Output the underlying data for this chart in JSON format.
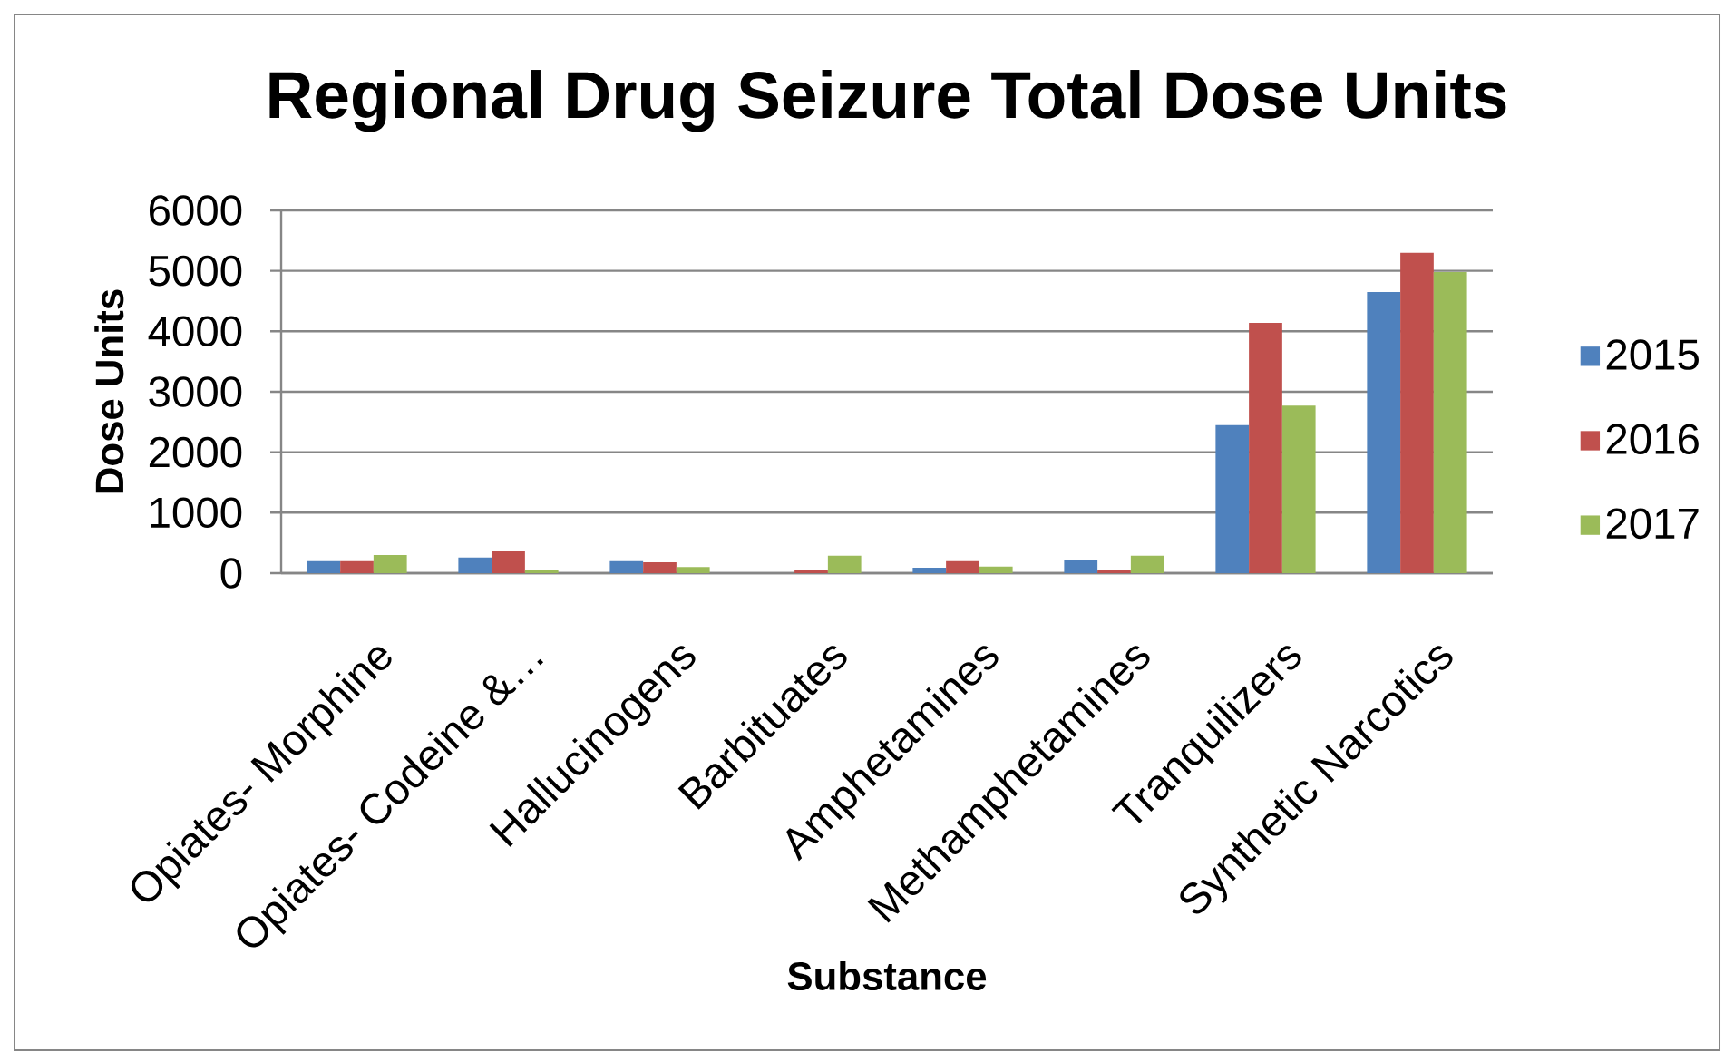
{
  "chart_data": {
    "type": "bar",
    "title": "Regional Drug Seizure Total Dose Units",
    "xlabel": "Substance",
    "ylabel": "Dose Units",
    "categories": [
      "Opiates- Morphine",
      "Opiates- Codeine &…",
      "Hallucinogens",
      "Barbituates",
      "Amphetamines",
      "Methamphetamines",
      "Tranquilizers",
      "Synthetic Narcotics"
    ],
    "series": [
      {
        "name": "2015",
        "color": "#4f81bd",
        "values": [
          200,
          260,
          200,
          null,
          90,
          220,
          2450,
          4650
        ]
      },
      {
        "name": "2016",
        "color": "#c0504d",
        "values": [
          200,
          360,
          180,
          60,
          200,
          60,
          4140,
          5300
        ]
      },
      {
        "name": "2017",
        "color": "#9bbb59",
        "values": [
          300,
          60,
          100,
          290,
          110,
          290,
          2770,
          4980
        ]
      }
    ],
    "ylim": [
      0,
      6000
    ],
    "yticks": [
      0,
      1000,
      2000,
      3000,
      4000,
      5000,
      6000
    ],
    "grid": "y",
    "legend": "right"
  }
}
